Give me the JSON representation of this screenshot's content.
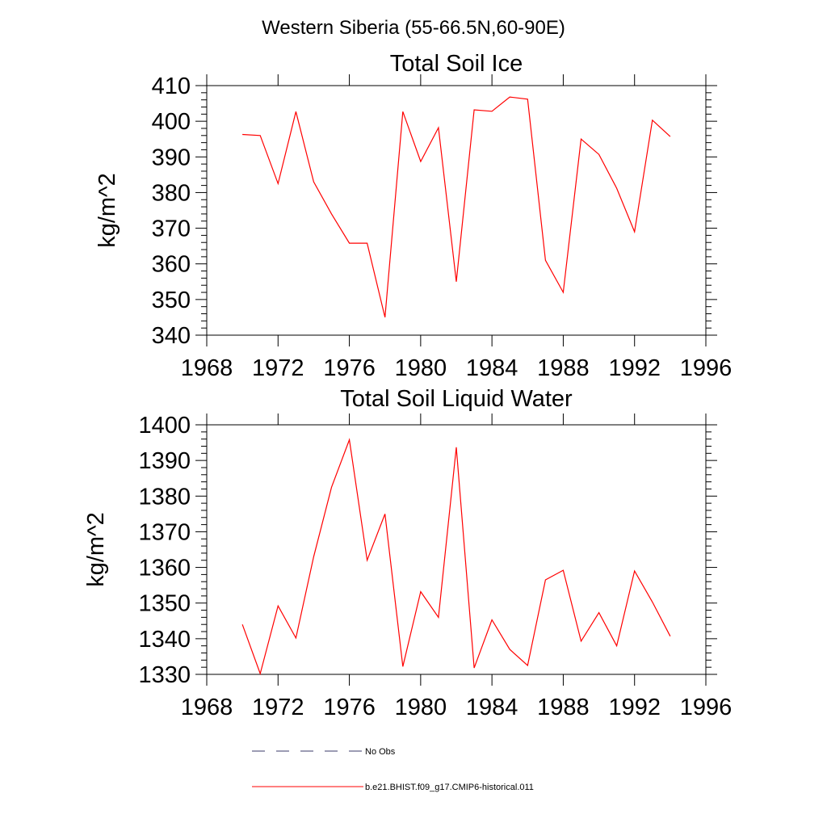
{
  "figure": {
    "title": "Western Siberia (55-66.5N,60-90E)"
  },
  "legend": {
    "items": [
      {
        "label": "No Obs",
        "color": "#3a3a6a",
        "dashed": true
      },
      {
        "label": "b.e21.BHIST.f09_g17.CMIP6-historical.011",
        "color": "#ff0000",
        "dashed": false
      }
    ]
  },
  "chart_data": [
    {
      "type": "line",
      "title": "Total Soil Ice",
      "xlabel": "",
      "ylabel": "kg/m^2",
      "xlim": [
        1968,
        1996
      ],
      "ylim": [
        340,
        410
      ],
      "xticks": [
        1968,
        1972,
        1976,
        1980,
        1984,
        1988,
        1992,
        1996
      ],
      "yticks": [
        340,
        350,
        360,
        370,
        380,
        390,
        400,
        410
      ],
      "grid": false,
      "series": [
        {
          "name": "b.e21.BHIST.f09_g17.CMIP6-historical.011",
          "color": "#ff0000",
          "x": [
            1970,
            1971,
            1972,
            1973,
            1974,
            1975,
            1976,
            1977,
            1978,
            1979,
            1980,
            1981,
            1982,
            1983,
            1984,
            1985,
            1986,
            1987,
            1988,
            1989,
            1990,
            1991,
            1992,
            1993,
            1994
          ],
          "y": [
            396.3,
            396.0,
            382.5,
            402.7,
            383.0,
            374.0,
            365.8,
            365.8,
            345.0,
            402.7,
            388.7,
            398.2,
            355.0,
            403.2,
            402.8,
            406.8,
            406.2,
            361.0,
            352.0,
            395.0,
            390.7,
            381.2,
            369.0,
            400.3,
            395.7
          ]
        }
      ]
    },
    {
      "type": "line",
      "title": "Total Soil Liquid Water",
      "xlabel": "",
      "ylabel": "kg/m^2",
      "xlim": [
        1968,
        1996
      ],
      "ylim": [
        1330,
        1400
      ],
      "xticks": [
        1968,
        1972,
        1976,
        1980,
        1984,
        1988,
        1992,
        1996
      ],
      "yticks": [
        1330,
        1340,
        1350,
        1360,
        1370,
        1380,
        1390,
        1400
      ],
      "grid": false,
      "series": [
        {
          "name": "b.e21.BHIST.f09_g17.CMIP6-historical.011",
          "color": "#ff0000",
          "x": [
            1970,
            1971,
            1972,
            1973,
            1974,
            1975,
            1976,
            1977,
            1978,
            1979,
            1980,
            1981,
            1982,
            1983,
            1984,
            1985,
            1986,
            1987,
            1988,
            1989,
            1990,
            1991,
            1992,
            1993,
            1994
          ],
          "y": [
            1344.0,
            1330.2,
            1349.2,
            1340.2,
            1363.0,
            1382.5,
            1395.8,
            1362.0,
            1375.0,
            1332.2,
            1353.2,
            1346.0,
            1393.7,
            1331.8,
            1345.3,
            1337.0,
            1332.5,
            1356.5,
            1359.2,
            1339.3,
            1347.3,
            1338.0,
            1359.0,
            1350.3,
            1340.7
          ]
        }
      ]
    }
  ]
}
